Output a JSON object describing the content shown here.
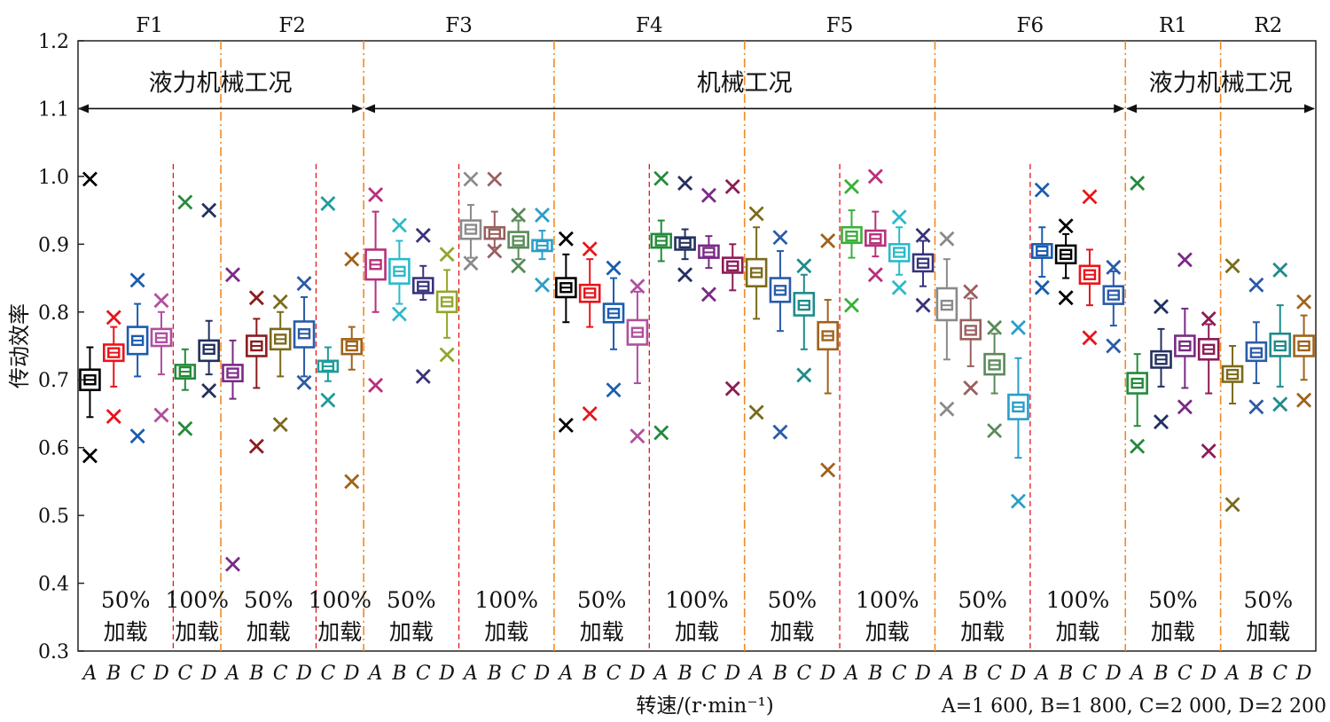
{
  "chart_data": {
    "type": "box",
    "ylabel": "传动效率",
    "xlabel": "转速/(r·min⁻¹)",
    "speed_legend": "A=1 600, B=1 800, C=2 000, D=2 200",
    "ylim": [
      0.3,
      1.2
    ],
    "yticks": [
      0.3,
      0.4,
      0.5,
      0.6,
      0.7,
      0.8,
      0.9,
      1.0,
      1.1,
      1.2
    ],
    "ytick_labels": [
      "0.3",
      "0.4",
      "0.5",
      "0.6",
      "0.7",
      "0.8",
      "0.9",
      "1.0",
      "1.1",
      "1.2"
    ],
    "gears": [
      "F1",
      "F2",
      "F3",
      "F4",
      "F5",
      "F6",
      "R1",
      "R2"
    ],
    "modes": [
      {
        "label": "液力机械工况"
      },
      {
        "label": "机械工况"
      },
      {
        "label": "液力机械工况"
      }
    ],
    "load_groups": [
      {
        "pct": "50%",
        "word": "加载"
      },
      {
        "pct": "100%",
        "word": "加载"
      },
      {
        "pct": "50%",
        "word": "加载"
      },
      {
        "pct": "100%",
        "word": "加载"
      },
      {
        "pct": "50%",
        "word": "加载"
      },
      {
        "pct": "100%",
        "word": "加载"
      },
      {
        "pct": "50%",
        "word": "加载"
      },
      {
        "pct": "100%",
        "word": "加载"
      },
      {
        "pct": "50%",
        "word": "加载"
      },
      {
        "pct": "100%",
        "word": "加载"
      },
      {
        "pct": "50%",
        "word": "加载"
      },
      {
        "pct": "100%",
        "word": "加载"
      },
      {
        "pct": "50%",
        "word": "加载"
      },
      {
        "pct": "50%",
        "word": "加载"
      }
    ],
    "speed_ticks": [
      "A",
      "B",
      "C",
      "D",
      "C",
      "D",
      "A",
      "B",
      "C",
      "D",
      "C",
      "D",
      "A",
      "B",
      "C",
      "D",
      "A",
      "B",
      "C",
      "D",
      "A",
      "B",
      "C",
      "D",
      "A",
      "B",
      "C",
      "D",
      "A",
      "B",
      "C",
      "D",
      "A",
      "B",
      "C",
      "D",
      "A",
      "B",
      "C",
      "D",
      "A",
      "B",
      "C",
      "D",
      "A",
      "B",
      "C",
      "D",
      "A",
      "B",
      "C",
      "D"
    ],
    "boxes": [
      {
        "gear": "F1",
        "load": "50%",
        "speed": "A",
        "color": "#000000",
        "min": 0.645,
        "q1": 0.685,
        "median": 0.7,
        "q3": 0.715,
        "max": 0.748,
        "out_high": 0.996,
        "out_low": 0.588
      },
      {
        "gear": "F1",
        "load": "50%",
        "speed": "B",
        "color": "#e8141a",
        "min": 0.69,
        "q1": 0.728,
        "median": 0.74,
        "q3": 0.752,
        "max": 0.778,
        "out_high": 0.792,
        "out_low": 0.646
      },
      {
        "gear": "F1",
        "load": "50%",
        "speed": "C",
        "color": "#1a5cb0",
        "min": 0.705,
        "q1": 0.738,
        "median": 0.758,
        "q3": 0.778,
        "max": 0.812,
        "out_high": 0.847,
        "out_low": 0.617
      },
      {
        "gear": "F1",
        "load": "50%",
        "speed": "D",
        "color": "#b04f9e",
        "min": 0.708,
        "q1": 0.75,
        "median": 0.762,
        "q3": 0.775,
        "max": 0.8,
        "out_high": 0.817,
        "out_low": 0.648
      },
      {
        "gear": "F1",
        "load": "100%",
        "speed": "C",
        "color": "#248a3a",
        "min": 0.685,
        "q1": 0.702,
        "median": 0.712,
        "q3": 0.722,
        "max": 0.745,
        "out_high": 0.962,
        "out_low": 0.628
      },
      {
        "gear": "F1",
        "load": "100%",
        "speed": "D",
        "color": "#23305f",
        "min": 0.708,
        "q1": 0.728,
        "median": 0.745,
        "q3": 0.758,
        "max": 0.787,
        "out_high": 0.95,
        "out_low": 0.684
      },
      {
        "gear": "F2",
        "load": "50%",
        "speed": "A",
        "color": "#7a2a86",
        "min": 0.672,
        "q1": 0.698,
        "median": 0.71,
        "q3": 0.722,
        "max": 0.758,
        "out_high": 0.855,
        "out_low": 0.428
      },
      {
        "gear": "F2",
        "load": "50%",
        "speed": "B",
        "color": "#8c1b1e",
        "min": 0.688,
        "q1": 0.735,
        "median": 0.75,
        "q3": 0.765,
        "max": 0.79,
        "out_high": 0.821,
        "out_low": 0.602
      },
      {
        "gear": "F2",
        "load": "50%",
        "speed": "C",
        "color": "#7a6a1a",
        "min": 0.705,
        "q1": 0.745,
        "median": 0.76,
        "q3": 0.775,
        "max": 0.8,
        "out_high": 0.815,
        "out_low": 0.634
      },
      {
        "gear": "F2",
        "load": "50%",
        "speed": "D",
        "color": "#2a5ba8",
        "min": 0.705,
        "q1": 0.748,
        "median": 0.768,
        "q3": 0.786,
        "max": 0.822,
        "out_high": 0.842,
        "out_low": 0.696
      },
      {
        "gear": "F2",
        "load": "100%",
        "speed": "C",
        "color": "#1f9b9b",
        "min": 0.698,
        "q1": 0.712,
        "median": 0.72,
        "q3": 0.728,
        "max": 0.748,
        "out_high": 0.96,
        "out_low": 0.67
      },
      {
        "gear": "F2",
        "load": "100%",
        "speed": "D",
        "color": "#a0621a",
        "min": 0.715,
        "q1": 0.738,
        "median": 0.75,
        "q3": 0.76,
        "max": 0.778,
        "out_high": 0.878,
        "out_low": 0.55
      },
      {
        "gear": "F3",
        "load": "50%",
        "speed": "A",
        "color": "#b8307a",
        "min": 0.8,
        "q1": 0.848,
        "median": 0.87,
        "q3": 0.892,
        "max": 0.948,
        "out_high": 0.973,
        "out_low": 0.692
      },
      {
        "gear": "F3",
        "load": "50%",
        "speed": "B",
        "color": "#2bbac9",
        "min": 0.812,
        "q1": 0.842,
        "median": 0.86,
        "q3": 0.878,
        "max": 0.905,
        "out_high": 0.928,
        "out_low": 0.797
      },
      {
        "gear": "F3",
        "load": "50%",
        "speed": "C",
        "color": "#38337a",
        "min": 0.818,
        "q1": 0.828,
        "median": 0.838,
        "q3": 0.85,
        "max": 0.868,
        "out_high": 0.913,
        "out_low": 0.705
      },
      {
        "gear": "F3",
        "load": "50%",
        "speed": "D",
        "color": "#93a52a",
        "min": 0.762,
        "q1": 0.8,
        "median": 0.815,
        "q3": 0.83,
        "max": 0.862,
        "out_high": 0.885,
        "out_low": 0.737
      },
      {
        "gear": "F3",
        "load": "100%",
        "speed": "A",
        "color": "#8a8a8a",
        "min": 0.88,
        "q1": 0.908,
        "median": 0.922,
        "q3": 0.935,
        "max": 0.958,
        "out_high": 0.996,
        "out_low": 0.872
      },
      {
        "gear": "F3",
        "load": "100%",
        "speed": "B",
        "color": "#9a5f5f",
        "min": 0.895,
        "q1": 0.908,
        "median": 0.915,
        "q3": 0.925,
        "max": 0.948,
        "out_high": 0.996,
        "out_low": 0.89
      },
      {
        "gear": "F3",
        "load": "100%",
        "speed": "C",
        "color": "#5a8a5a",
        "min": 0.878,
        "q1": 0.895,
        "median": 0.905,
        "q3": 0.918,
        "max": 0.935,
        "out_high": 0.943,
        "out_low": 0.868
      },
      {
        "gear": "F3",
        "load": "100%",
        "speed": "D",
        "color": "#2a9ec9",
        "min": 0.878,
        "q1": 0.89,
        "median": 0.898,
        "q3": 0.906,
        "max": 0.92,
        "out_high": 0.943,
        "out_low": 0.84
      },
      {
        "gear": "F4",
        "load": "50%",
        "speed": "A",
        "color": "#000000",
        "min": 0.785,
        "q1": 0.822,
        "median": 0.836,
        "q3": 0.85,
        "max": 0.885,
        "out_high": 0.908,
        "out_low": 0.633
      },
      {
        "gear": "F4",
        "load": "50%",
        "speed": "B",
        "color": "#e8141a",
        "min": 0.778,
        "q1": 0.815,
        "median": 0.828,
        "q3": 0.84,
        "max": 0.878,
        "out_high": 0.893,
        "out_low": 0.65
      },
      {
        "gear": "F4",
        "load": "50%",
        "speed": "C",
        "color": "#1a5cb0",
        "min": 0.745,
        "q1": 0.785,
        "median": 0.798,
        "q3": 0.812,
        "max": 0.85,
        "out_high": 0.865,
        "out_low": 0.685
      },
      {
        "gear": "F4",
        "load": "50%",
        "speed": "D",
        "color": "#b04f9e",
        "min": 0.695,
        "q1": 0.752,
        "median": 0.77,
        "q3": 0.788,
        "max": 0.83,
        "out_high": 0.838,
        "out_low": 0.617
      },
      {
        "gear": "F4",
        "load": "100%",
        "speed": "A",
        "color": "#248a3a",
        "min": 0.875,
        "q1": 0.895,
        "median": 0.905,
        "q3": 0.915,
        "max": 0.935,
        "out_high": 0.997,
        "out_low": 0.622
      },
      {
        "gear": "F4",
        "load": "100%",
        "speed": "B",
        "color": "#23305f",
        "min": 0.878,
        "q1": 0.892,
        "median": 0.902,
        "q3": 0.91,
        "max": 0.922,
        "out_high": 0.99,
        "out_low": 0.855
      },
      {
        "gear": "F4",
        "load": "100%",
        "speed": "C",
        "color": "#7a2a86",
        "min": 0.865,
        "q1": 0.88,
        "median": 0.888,
        "q3": 0.898,
        "max": 0.912,
        "out_high": 0.972,
        "out_low": 0.826
      },
      {
        "gear": "F4",
        "load": "100%",
        "speed": "D",
        "color": "#8c1b55",
        "min": 0.832,
        "q1": 0.858,
        "median": 0.868,
        "q3": 0.88,
        "max": 0.9,
        "out_high": 0.985,
        "out_low": 0.687
      },
      {
        "gear": "F5",
        "load": "50%",
        "speed": "A",
        "color": "#7a6a1a",
        "min": 0.79,
        "q1": 0.838,
        "median": 0.858,
        "q3": 0.878,
        "max": 0.925,
        "out_high": 0.945,
        "out_low": 0.652
      },
      {
        "gear": "F5",
        "load": "50%",
        "speed": "B",
        "color": "#2a5ba8",
        "min": 0.772,
        "q1": 0.815,
        "median": 0.832,
        "q3": 0.85,
        "max": 0.89,
        "out_high": 0.91,
        "out_low": 0.623
      },
      {
        "gear": "F5",
        "load": "50%",
        "speed": "C",
        "color": "#1f8b8b",
        "min": 0.745,
        "q1": 0.795,
        "median": 0.81,
        "q3": 0.828,
        "max": 0.855,
        "out_high": 0.868,
        "out_low": 0.707
      },
      {
        "gear": "F5",
        "load": "50%",
        "speed": "D",
        "color": "#a0621a",
        "min": 0.68,
        "q1": 0.745,
        "median": 0.765,
        "q3": 0.785,
        "max": 0.818,
        "out_high": 0.905,
        "out_low": 0.567
      },
      {
        "gear": "F5",
        "load": "100%",
        "speed": "A",
        "color": "#3ab03a",
        "min": 0.88,
        "q1": 0.902,
        "median": 0.912,
        "q3": 0.925,
        "max": 0.95,
        "out_high": 0.985,
        "out_low": 0.81
      },
      {
        "gear": "F5",
        "load": "100%",
        "speed": "B",
        "color": "#b8307a",
        "min": 0.882,
        "q1": 0.898,
        "median": 0.908,
        "q3": 0.92,
        "max": 0.948,
        "out_high": 1.0,
        "out_low": 0.855
      },
      {
        "gear": "F5",
        "load": "100%",
        "speed": "C",
        "color": "#2bbac9",
        "min": 0.855,
        "q1": 0.875,
        "median": 0.888,
        "q3": 0.9,
        "max": 0.925,
        "out_high": 0.94,
        "out_low": 0.836
      },
      {
        "gear": "F5",
        "load": "100%",
        "speed": "D",
        "color": "#38337a",
        "min": 0.838,
        "q1": 0.86,
        "median": 0.872,
        "q3": 0.885,
        "max": 0.905,
        "out_high": 0.913,
        "out_low": 0.81
      },
      {
        "gear": "F6",
        "load": "50%",
        "speed": "A",
        "color": "#8a8a8a",
        "min": 0.73,
        "q1": 0.788,
        "median": 0.81,
        "q3": 0.835,
        "max": 0.878,
        "out_high": 0.908,
        "out_low": 0.657
      },
      {
        "gear": "F6",
        "load": "50%",
        "speed": "B",
        "color": "#9a5f5f",
        "min": 0.72,
        "q1": 0.76,
        "median": 0.773,
        "q3": 0.788,
        "max": 0.82,
        "out_high": 0.83,
        "out_low": 0.688
      },
      {
        "gear": "F6",
        "load": "50%",
        "speed": "C",
        "color": "#5a8a5a",
        "min": 0.68,
        "q1": 0.708,
        "median": 0.722,
        "q3": 0.738,
        "max": 0.768,
        "out_high": 0.777,
        "out_low": 0.625
      },
      {
        "gear": "F6",
        "load": "50%",
        "speed": "D",
        "color": "#2a9ec9",
        "min": 0.585,
        "q1": 0.642,
        "median": 0.66,
        "q3": 0.678,
        "max": 0.732,
        "out_high": 0.777,
        "out_low": 0.521
      },
      {
        "gear": "F6",
        "load": "100%",
        "speed": "A",
        "color": "#1a5cb0",
        "min": 0.852,
        "q1": 0.88,
        "median": 0.89,
        "q3": 0.9,
        "max": 0.925,
        "out_high": 0.98,
        "out_low": 0.836
      },
      {
        "gear": "F6",
        "load": "100%",
        "speed": "B",
        "color": "#000000",
        "min": 0.85,
        "q1": 0.872,
        "median": 0.885,
        "q3": 0.898,
        "max": 0.915,
        "out_high": 0.927,
        "out_low": 0.821
      },
      {
        "gear": "F6",
        "load": "100%",
        "speed": "C",
        "color": "#e8141a",
        "min": 0.81,
        "q1": 0.842,
        "median": 0.855,
        "q3": 0.868,
        "max": 0.892,
        "out_high": 0.97,
        "out_low": 0.762
      },
      {
        "gear": "F6",
        "load": "100%",
        "speed": "D",
        "color": "#2a5ba8",
        "min": 0.78,
        "q1": 0.812,
        "median": 0.825,
        "q3": 0.838,
        "max": 0.86,
        "out_high": 0.866,
        "out_low": 0.75
      },
      {
        "gear": "R1",
        "load": "50%",
        "speed": "A",
        "color": "#248a3a",
        "min": 0.632,
        "q1": 0.68,
        "median": 0.695,
        "q3": 0.71,
        "max": 0.738,
        "out_high": 0.99,
        "out_low": 0.602
      },
      {
        "gear": "R1",
        "load": "50%",
        "speed": "B",
        "color": "#23305f",
        "min": 0.69,
        "q1": 0.718,
        "median": 0.73,
        "q3": 0.742,
        "max": 0.775,
        "out_high": 0.808,
        "out_low": 0.638
      },
      {
        "gear": "R1",
        "load": "50%",
        "speed": "C",
        "color": "#7a2a86",
        "min": 0.688,
        "q1": 0.735,
        "median": 0.75,
        "q3": 0.765,
        "max": 0.805,
        "out_high": 0.877,
        "out_low": 0.66
      },
      {
        "gear": "R1",
        "load": "50%",
        "speed": "D",
        "color": "#8c1b55",
        "min": 0.68,
        "q1": 0.73,
        "median": 0.745,
        "q3": 0.76,
        "max": 0.782,
        "out_high": 0.79,
        "out_low": 0.595
      },
      {
        "gear": "R2",
        "load": "50%",
        "speed": "A",
        "color": "#7a6a1a",
        "min": 0.665,
        "q1": 0.697,
        "median": 0.708,
        "q3": 0.72,
        "max": 0.75,
        "out_high": 0.868,
        "out_low": 0.516
      },
      {
        "gear": "R2",
        "load": "50%",
        "speed": "B",
        "color": "#2a5ba8",
        "min": 0.695,
        "q1": 0.728,
        "median": 0.74,
        "q3": 0.755,
        "max": 0.785,
        "out_high": 0.84,
        "out_low": 0.66
      },
      {
        "gear": "R2",
        "load": "50%",
        "speed": "C",
        "color": "#1f8b8b",
        "min": 0.69,
        "q1": 0.735,
        "median": 0.75,
        "q3": 0.768,
        "max": 0.81,
        "out_high": 0.862,
        "out_low": 0.664
      },
      {
        "gear": "R2",
        "load": "50%",
        "speed": "D",
        "color": "#a0621a",
        "min": 0.7,
        "q1": 0.735,
        "median": 0.75,
        "q3": 0.765,
        "max": 0.795,
        "out_high": 0.815,
        "out_low": 0.67
      }
    ]
  }
}
